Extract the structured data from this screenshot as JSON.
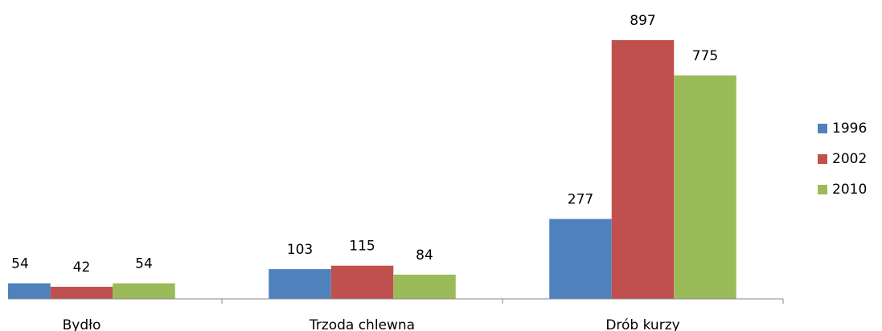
{
  "chart_data": {
    "type": "bar",
    "categories": [
      "Bydło",
      "Trzoda chlewna",
      "Drób kurzy"
    ],
    "series": [
      {
        "name": "1996",
        "color": "#4f81bd",
        "values": [
          54,
          103,
          277
        ]
      },
      {
        "name": "2002",
        "color": "#c0504d",
        "values": [
          42,
          115,
          897
        ]
      },
      {
        "name": "2010",
        "color": "#9bbb59",
        "values": [
          54,
          84,
          775
        ]
      }
    ],
    "legend": "right"
  }
}
